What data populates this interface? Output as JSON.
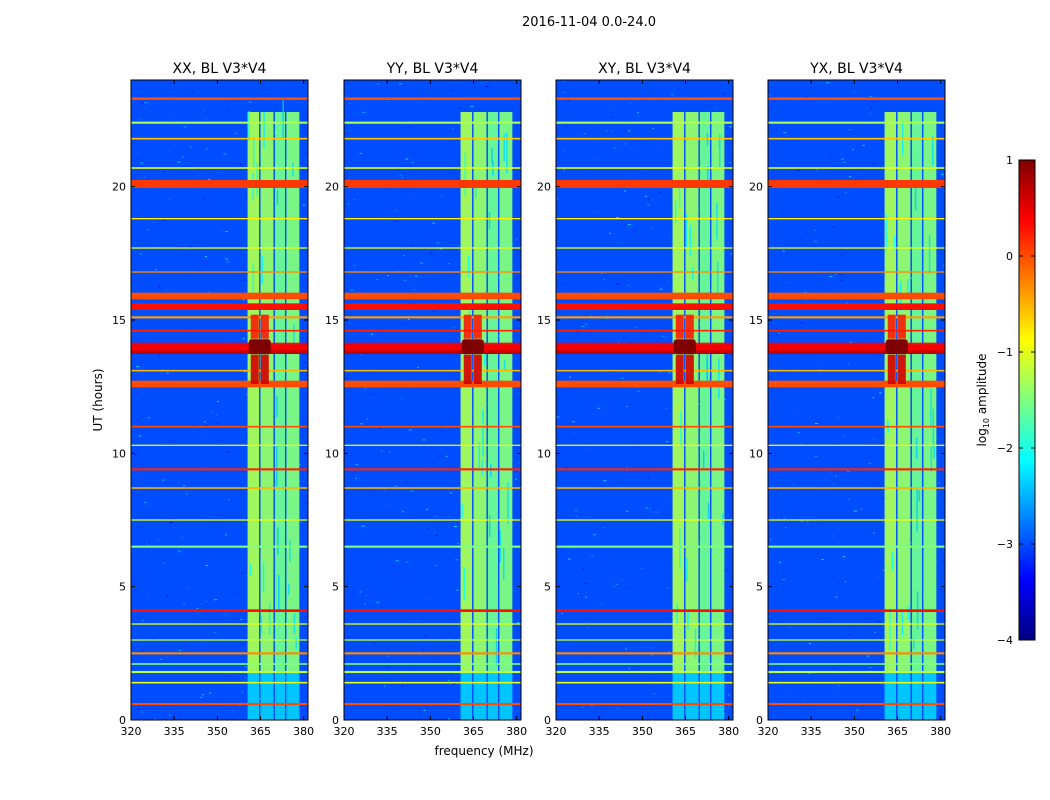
{
  "figure_title": "2016-11-04 0.0-24.0",
  "colors": {
    "jet_stops": [
      "#00007f",
      "#0000ff",
      "#007fff",
      "#00ffff",
      "#7fff7f",
      "#ffff00",
      "#ff7f00",
      "#ff0000",
      "#7f0000"
    ],
    "background": "#0a1fe8",
    "rfi": "#ff8c00"
  },
  "chart_data": {
    "type": "heatmap",
    "suptitle": "2016-11-04 0.0-24.0",
    "xlabel": "frequency (MHz)",
    "ylabel": "UT (hours)",
    "xlim": [
      320,
      381.5
    ],
    "ylim": [
      0,
      24
    ],
    "xticks": [
      320,
      335,
      350,
      365,
      380
    ],
    "yticks": [
      0,
      5,
      10,
      15,
      20
    ],
    "colorbar": {
      "label_prefix": "log",
      "label_sub": "10",
      "label_suffix": " amplitude",
      "range": [
        -4,
        1
      ],
      "ticks": [
        "1",
        "0",
        "−1",
        "−2",
        "−3",
        "−4"
      ],
      "tick_values": [
        1,
        0,
        -1,
        -2,
        -3,
        -4
      ]
    },
    "background_level": -3.0,
    "bands": [
      {
        "f0": 360.5,
        "f1": 364.5,
        "level": -1.3
      },
      {
        "f0": 365.0,
        "f1": 369.5,
        "level": -1.4
      },
      {
        "f0": 370.0,
        "f1": 373.5,
        "level": -1.6
      },
      {
        "f0": 374.0,
        "f1": 378.5,
        "level": -1.5
      }
    ],
    "rfi_lines": [
      {
        "t": 0.6,
        "level": 0.0,
        "w": 0.08
      },
      {
        "t": 1.4,
        "level": -1.0,
        "w": 0.06
      },
      {
        "t": 1.8,
        "level": -1.2,
        "w": 0.08
      },
      {
        "t": 2.1,
        "level": -1.5,
        "w": 0.06
      },
      {
        "t": 2.5,
        "level": -0.3,
        "w": 0.08
      },
      {
        "t": 3.0,
        "level": -1.2,
        "w": 0.05
      },
      {
        "t": 3.6,
        "level": -1.0,
        "w": 0.05
      },
      {
        "t": 4.1,
        "level": 0.3,
        "w": 0.1
      },
      {
        "t": 6.5,
        "level": -1.5,
        "w": 0.08
      },
      {
        "t": 7.5,
        "level": -1.0,
        "w": 0.05
      },
      {
        "t": 8.7,
        "level": -0.5,
        "w": 0.06
      },
      {
        "t": 9.4,
        "level": 0.2,
        "w": 0.08
      },
      {
        "t": 10.3,
        "level": -0.8,
        "w": 0.05
      },
      {
        "t": 11.0,
        "level": 0.0,
        "w": 0.06
      },
      {
        "t": 12.6,
        "level": 0.0,
        "w": 0.25
      },
      {
        "t": 13.1,
        "level": -0.5,
        "w": 0.06
      },
      {
        "t": 13.9,
        "level": 0.7,
        "w": 0.35
      },
      {
        "t": 14.6,
        "level": 0.2,
        "w": 0.06
      },
      {
        "t": 15.1,
        "level": -0.4,
        "w": 0.08
      },
      {
        "t": 15.5,
        "level": 0.3,
        "w": 0.25
      },
      {
        "t": 15.9,
        "level": 0.0,
        "w": 0.25
      },
      {
        "t": 16.8,
        "level": -0.3,
        "w": 0.05
      },
      {
        "t": 17.7,
        "level": -1.0,
        "w": 0.05
      },
      {
        "t": 18.8,
        "level": -0.8,
        "w": 0.05
      },
      {
        "t": 20.1,
        "level": 0.1,
        "w": 0.3
      },
      {
        "t": 20.7,
        "level": -1.0,
        "w": 0.06
      },
      {
        "t": 21.8,
        "level": -0.6,
        "w": 0.06
      },
      {
        "t": 22.4,
        "level": -1.3,
        "w": 0.08
      },
      {
        "t": 23.3,
        "level": 0.0,
        "w": 0.1
      }
    ],
    "hotspots": [
      {
        "f": 363.0,
        "t": 14.0,
        "level": 1.0
      },
      {
        "f": 366.5,
        "t": 14.0,
        "level": 1.0
      }
    ],
    "panels": [
      {
        "title": "XX, BL V3*V4",
        "pol": "XX"
      },
      {
        "title": "YY, BL V3*V4",
        "pol": "YY"
      },
      {
        "title": "XY, BL V3*V4",
        "pol": "XY"
      },
      {
        "title": "YX, BL V3*V4",
        "pol": "YX"
      }
    ]
  }
}
